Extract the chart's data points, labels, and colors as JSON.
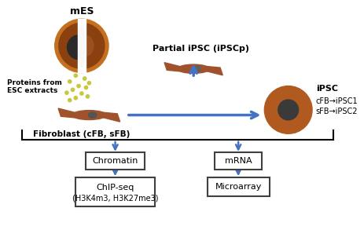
{
  "bg_color": "#ffffff",
  "arrow_color": "#4472C4",
  "box_border_color": "#4472C4",
  "cell_outer_color": "#A0522D",
  "cell_inner_color": "#555555",
  "dot_color": "#b8b840",
  "text_color": "#000000",
  "labels": {
    "mES": "mES",
    "partial_ipsc": "Partial iPSC (iPSCp)",
    "proteins": "Proteins from\nESC extracts",
    "fibroblast": "Fibroblast (cFB, sFB)",
    "ipsc_title": "iPSC",
    "ipsc_line1": "cFB→iPSC1",
    "ipsc_line2": "sFB→iPSC2",
    "chromatin": "Chromatin",
    "chipseq_line1": "ChIP-seq",
    "chipseq_line2": "(H3K4m3, H3K27me3)",
    "mrna": "mRNA",
    "microarray": "Microarray"
  }
}
